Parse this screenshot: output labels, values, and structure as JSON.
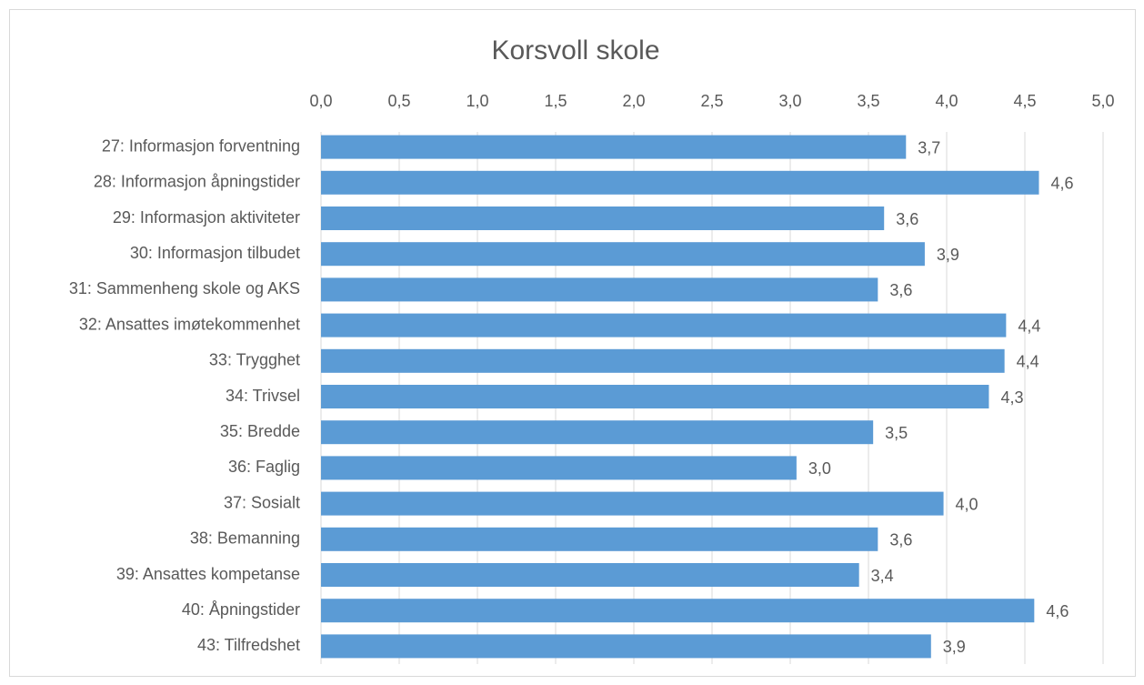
{
  "chart_data": {
    "type": "barh",
    "title": "Korsvoll skole",
    "categories": [
      "27: Informasjon forventning",
      "28: Informasjon åpningstider",
      "29: Informasjon aktiviteter",
      "30: Informasjon tilbudet",
      "31: Sammenheng skole og AKS",
      "32: Ansattes imøtekommenhet",
      "33: Trygghet",
      "34: Trivsel",
      "35: Bredde",
      "36: Faglig",
      "37: Sosialt",
      "38: Bemanning",
      "39: Ansattes kompetanse",
      "40: Åpningstider",
      "43: Tilfredshet"
    ],
    "values": [
      3.74,
      4.59,
      3.6,
      3.86,
      3.56,
      4.38,
      4.37,
      4.27,
      3.53,
      3.04,
      3.98,
      3.56,
      3.44,
      4.56,
      3.9
    ],
    "value_labels": [
      "3,7",
      "4,6",
      "3,6",
      "3,9",
      "3,6",
      "4,4",
      "4,4",
      "4,3",
      "3,5",
      "3,0",
      "4,0",
      "3,6",
      "3,4",
      "4,6",
      "3,9"
    ],
    "color": "#5b9bd5",
    "xlim": [
      0,
      5
    ],
    "xticks": [
      {
        "value": 0,
        "label": "0,0"
      },
      {
        "value": 0.5,
        "label": "0,5"
      },
      {
        "value": 1,
        "label": "1,0"
      },
      {
        "value": 1.5,
        "label": "1,5"
      },
      {
        "value": 2,
        "label": "2,0"
      },
      {
        "value": 2.5,
        "label": "2,5"
      },
      {
        "value": 3,
        "label": "3,0"
      },
      {
        "value": 3.5,
        "label": "3,5"
      },
      {
        "value": 4,
        "label": "4,0"
      },
      {
        "value": 4.5,
        "label": "4,5"
      },
      {
        "value": 5,
        "label": "5,0"
      }
    ],
    "grid": true
  }
}
